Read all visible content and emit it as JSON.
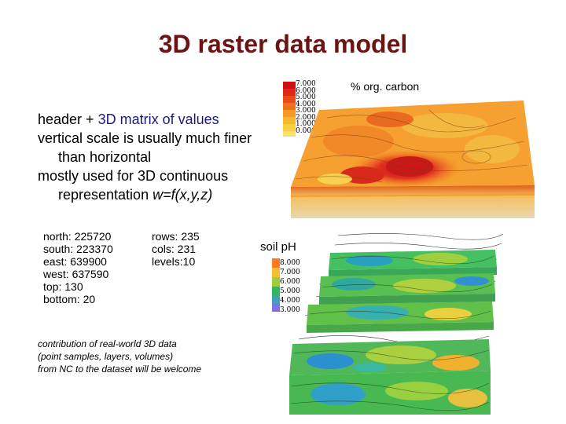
{
  "title": "3D raster data model",
  "bullets": {
    "line1_prefix": "header + ",
    "line1_highlight": "3D matrix of values",
    "line2": "vertical scale is usually much finer than horizontal",
    "line3_prefix": "mostly used for 3D continuous representation ",
    "line3_formula": "w=f(x,y,z)"
  },
  "header_left": [
    "north: 225720",
    "south: 223370",
    "east: 639900",
    "west: 637590",
    "top: 130",
    "bottom: 20"
  ],
  "header_right": [
    "rows: 235",
    "cols: 231",
    "levels:10"
  ],
  "note": [
    "contribution of real-world 3D data",
    "(point samples, layers, volumes)",
    "from NC to the dataset will be welcome"
  ],
  "carbon": {
    "label": "% org. carbon",
    "scale": [
      "7.000",
      "6.000",
      "5.000",
      "4.000",
      "3.000",
      "2.000",
      "1.000",
      "0.000"
    ],
    "colors": [
      "#d01010",
      "#e02818",
      "#ea4a18",
      "#f07020",
      "#f59a25",
      "#f7b830",
      "#f8d040",
      "#fae070"
    ]
  },
  "soil": {
    "label": "soil pH",
    "scale": [
      "8.000",
      "7.000",
      "6.000",
      "5.000",
      "4.000",
      "3.000"
    ],
    "colors": [
      "#ff7a20",
      "#f0c030",
      "#9ad040",
      "#30b860",
      "#40a0c0",
      "#8070e0"
    ]
  }
}
